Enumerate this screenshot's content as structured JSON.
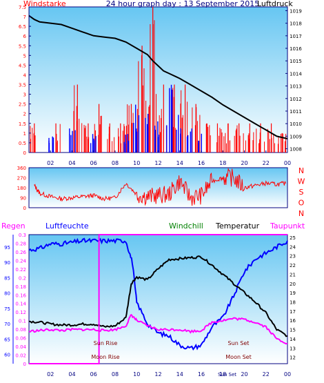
{
  "header": {
    "wind_label": "Windstarke",
    "title": "24 hour graph day : 13 September 2015",
    "pressure_label": "Luftdruck"
  },
  "legend": {
    "rain": "Regen",
    "humidity": "Luftfeuchte",
    "windchill": "Windchill",
    "temperature": "Temperatur",
    "dewpoint": "Taupunkt"
  },
  "annotations": {
    "sun_rise": "Sun Rise",
    "moon_rise": "Moon Rise",
    "sun_set": "Sun Set",
    "moon_set": "Moon Set",
    "sun_set_tick": "Sun Set"
  },
  "colors": {
    "wind": "#ff0000",
    "gust_bars": "#0000ff",
    "pressure": "#000000",
    "rain": "#ff00ff",
    "humidity": "#0000ff",
    "windchill": "#008000",
    "temperature": "#000000",
    "dewpoint": "#ff00ff",
    "axis_text": "#000080",
    "bg_top": "#66c6f2",
    "bg_bottom": "#ffffff"
  },
  "chart_data": [
    {
      "type": "line",
      "panel": "wind-pressure",
      "x_ticks": [
        "02",
        "04",
        "06",
        "08",
        "10",
        "12",
        "14",
        "16",
        "18",
        "20",
        "22",
        "00"
      ],
      "y_left_ticks": [
        "0",
        "0.5",
        "1",
        "1.5",
        "2",
        "2.5",
        "3",
        "3.5",
        "4",
        "4.5",
        "5",
        "5.5",
        "6",
        "6.5",
        "7",
        "7.5"
      ],
      "y_right_ticks": [
        "1008",
        "1009",
        "1010",
        "1011",
        "1012",
        "1013",
        "1014",
        "1015",
        "1016",
        "1017",
        "1018",
        "1019"
      ],
      "y_left_range": [
        0,
        7.5
      ],
      "y_right_range": [
        1007.7,
        1019.3
      ],
      "series": [
        {
          "name": "Luftdruck",
          "axis": "right",
          "x": [
            0,
            0.5,
            1,
            2,
            3,
            4,
            5,
            6,
            7,
            8,
            9,
            10,
            11,
            11.5,
            12,
            12.5,
            13,
            14,
            15,
            16,
            17,
            18,
            19,
            20,
            21,
            22,
            23,
            24
          ],
          "values": [
            1018.6,
            1018.3,
            1018.1,
            1018.0,
            1017.9,
            1017.6,
            1017.3,
            1017.0,
            1016.9,
            1016.8,
            1016.5,
            1016.0,
            1015.5,
            1015.0,
            1014.6,
            1014.2,
            1014.0,
            1013.6,
            1013.1,
            1012.6,
            1012.1,
            1011.5,
            1011.0,
            1010.5,
            1010.0,
            1009.5,
            1009.0,
            1008.8
          ]
        },
        {
          "name": "Windstarke",
          "axis": "left",
          "x": [
            0.5,
            1.5,
            2.5,
            3.5,
            4.5,
            5.5,
            6.5,
            7.5,
            8.5,
            9.5,
            10.5,
            11.5,
            12.5,
            13.5,
            14.5,
            15.5,
            16.5,
            17.5,
            18.5,
            19.5,
            20.5,
            21.5,
            22.5,
            23.5
          ],
          "values": [
            1.5,
            0,
            1.5,
            0,
            3.5,
            1.5,
            2.5,
            1.5,
            1.5,
            2.5,
            5.5,
            7.5,
            3.5,
            3.5,
            3.5,
            2.5,
            1.5,
            1.5,
            1.5,
            1.5,
            1.5,
            1.5,
            1.5,
            1.0
          ]
        },
        {
          "name": "Boe",
          "axis": "left",
          "x": [
            2,
            4,
            6,
            9,
            10,
            11,
            12,
            13,
            14,
            15,
            16
          ],
          "values": [
            1.0,
            1.5,
            1.0,
            1.0,
            2.5,
            2.5,
            2.0,
            3.5,
            2.0,
            1.5,
            1.0
          ]
        }
      ]
    },
    {
      "type": "line",
      "panel": "wind-direction",
      "y_ticks": [
        "0",
        "90",
        "180",
        "270",
        "360"
      ],
      "direction_labels": [
        "N",
        "W",
        "S",
        "O",
        "N"
      ],
      "y_range": [
        0,
        360
      ],
      "x": [
        0.5,
        1,
        2,
        3,
        4,
        5,
        6,
        7,
        8,
        9,
        10,
        11,
        12,
        13,
        14,
        15,
        16,
        17,
        18,
        19,
        20,
        21,
        22,
        23,
        23.9
      ],
      "values": [
        200,
        130,
        100,
        80,
        90,
        100,
        110,
        80,
        90,
        220,
        120,
        100,
        110,
        120,
        240,
        90,
        110,
        240,
        270,
        270,
        180,
        200,
        220,
        210,
        220
      ]
    },
    {
      "type": "line",
      "panel": "temperature-humidity",
      "y_left_rain_ticks": [
        "0",
        "0.02",
        "0.04",
        "0.06",
        "0.08",
        "0.1",
        "0.12",
        "0.14",
        "0.16",
        "0.18",
        "0.2",
        "0.22",
        "0.24",
        "0.26",
        "0.28",
        "0.3"
      ],
      "y_left_rain_range": [
        0,
        0.3
      ],
      "y_left_humidity_ticks": [
        "60",
        "65",
        "70",
        "75",
        "80",
        "85",
        "90",
        "95"
      ],
      "y_left_humidity_range": [
        57,
        99
      ],
      "y_right_ticks": [
        "12",
        "13",
        "14",
        "15",
        "16",
        "17",
        "18",
        "19",
        "20",
        "21",
        "22",
        "23",
        "24",
        "25"
      ],
      "y_right_range": [
        11.3,
        25.3
      ],
      "series": [
        {
          "name": "Luftfeuchte",
          "axis": "humidity",
          "x": [
            0,
            1,
            2,
            3,
            4,
            5,
            6,
            7,
            8,
            9,
            9.6,
            10,
            11,
            12,
            13,
            14,
            15,
            16,
            17,
            18,
            19,
            20,
            21,
            22,
            23,
            24
          ],
          "values": [
            94,
            94.5,
            96,
            96,
            96.5,
            97,
            97,
            97,
            97,
            97,
            90,
            77,
            70,
            67,
            66,
            63,
            62,
            63,
            69,
            72,
            79,
            87,
            91,
            93,
            95,
            97
          ]
        },
        {
          "name": "Temperatur",
          "axis": "temp",
          "x": [
            0,
            1,
            2,
            3,
            4,
            5,
            6,
            7,
            8,
            9,
            9.5,
            10,
            11,
            12,
            13,
            14,
            15,
            16,
            17,
            18,
            19,
            20,
            21,
            22,
            23,
            24
          ],
          "values": [
            15.9,
            15.8,
            15.6,
            15.5,
            15.5,
            15.6,
            15.6,
            15.3,
            15.4,
            16.3,
            20.0,
            20.7,
            20.4,
            21.6,
            22.6,
            22.7,
            22.8,
            22.9,
            22.0,
            21.0,
            20.0,
            19.0,
            18.0,
            16.8,
            15.0,
            14.3
          ]
        },
        {
          "name": "Taupunkt",
          "axis": "temp",
          "x": [
            0,
            1,
            2,
            3,
            4,
            5,
            6,
            7,
            8,
            9,
            9.5,
            10,
            11,
            12,
            13,
            14,
            15,
            16,
            17,
            18,
            19,
            20,
            21,
            22,
            23,
            24
          ],
          "values": [
            14.8,
            14.9,
            15.0,
            14.9,
            15.0,
            15.0,
            15.0,
            14.9,
            15.0,
            15.4,
            16.6,
            16.0,
            15.4,
            15.0,
            15.0,
            15.0,
            14.8,
            14.9,
            15.8,
            16.0,
            16.2,
            16.1,
            15.8,
            15.3,
            14.0,
            13.5
          ]
        },
        {
          "name": "Regen",
          "axis": "rain",
          "x": [
            0,
            6.5,
            6.5,
            24
          ],
          "values": [
            0,
            0,
            0.3,
            0.3
          ]
        }
      ]
    }
  ]
}
